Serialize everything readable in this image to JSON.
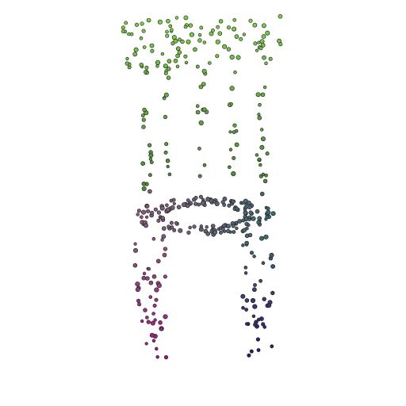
{
  "scene": {
    "subject": "chair-point-cloud",
    "background_color": "#ffffff",
    "point_outline_color": "#1a1a1a",
    "color_gradient": {
      "backrest_top": "#7ed04a",
      "backrest_lower": "#4e8a3c",
      "seat_left": "#8a5a78",
      "seat_right": "#3a6a70",
      "left_legs_bottom": "#a0168a",
      "right_legs_bottom": "#3a106a"
    }
  }
}
